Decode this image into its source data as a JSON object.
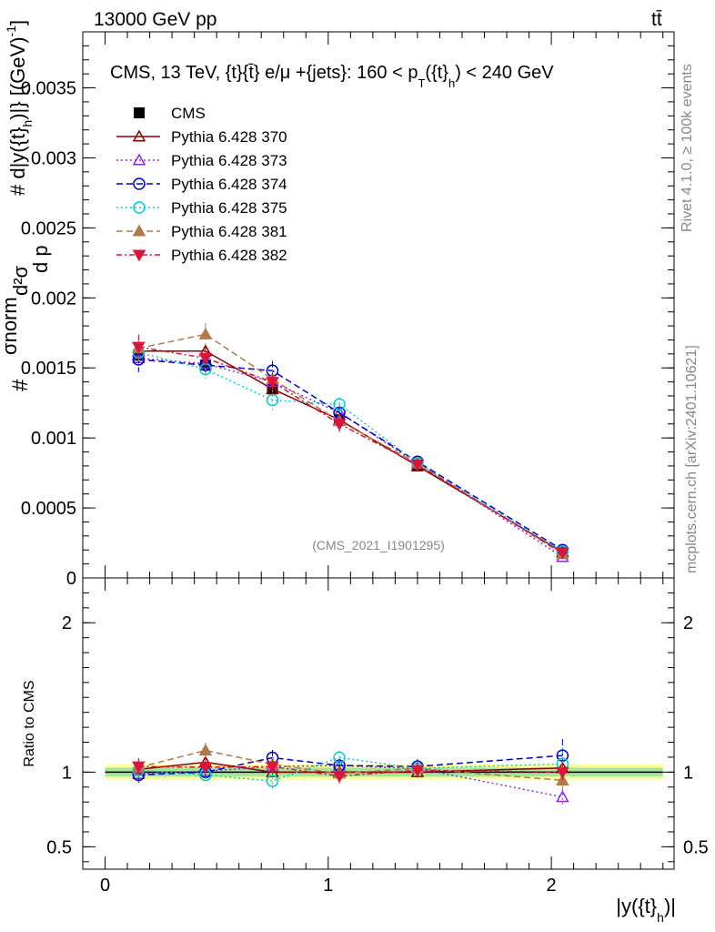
{
  "header": {
    "left": "13000 GeV pp",
    "right": "tt̄"
  },
  "side_text": {
    "rivet": "Rivet 4.1.0, ≥ 100k events",
    "mcplots": "mcplots.cern.ch [arXiv:2401.10621]"
  },
  "chart_data": {
    "type": "line",
    "title": "CMS, 13 TeV, {t}{t̄} e/μ +{jets}: 160 < p_T({t}_h) < 240 GeV",
    "title_main": "CMS, 13 TeV, {t}{t̄} e/μ +{jets}: 160 <  p",
    "title_sub1": "T",
    "title_mid": "({t}",
    "title_sub2": "h",
    "title_end": ") < 240 GeV",
    "watermark": "(CMS_2021_I1901295)",
    "xlabel": "|y({t}_h)|",
    "xlabel_main": "|y({t}",
    "xlabel_sub": "h",
    "xlabel_end": ")|",
    "ylabel": "1/σ_norm d²σ / (d p_T({t}_h) d|y({t}_h)|) [(GeV)^-1]",
    "ylabel_top": "# d|y({t}",
    "ylabel_top_sub": "h",
    "ylabel_top_end": ")|} [(GeV)",
    "ylabel_top_sup": "-1",
    "ylabel_top_close": "]",
    "ylabel_frac": "d²σ",
    "ylabel_den": "d p",
    "ylabel_norm": "σnorm",
    "ratio_ylabel": "Ratio to CMS",
    "xlim": [
      -0.1,
      2.55
    ],
    "ylim": [
      0,
      0.0039
    ],
    "ratio_ylim": [
      0.35,
      2.3
    ],
    "x_ticks": [
      0,
      1,
      2
    ],
    "x_tick_labels": [
      "0",
      "1",
      "2"
    ],
    "y_ticks": [
      0,
      0.0005,
      0.001,
      0.0015,
      0.002,
      0.0025,
      0.003,
      0.0035
    ],
    "y_tick_labels": [
      "0",
      "0.0005",
      "0.001",
      "0.0015",
      "0.002",
      "0.0025",
      "0.003",
      "0.0035"
    ],
    "ratio_ticks": [
      0.5,
      1,
      2
    ],
    "ratio_tick_labels": [
      "0.5",
      "1",
      "2"
    ],
    "x": [
      0.15,
      0.45,
      0.75,
      1.05,
      1.4,
      2.05
    ],
    "x_bins": [
      [
        0,
        0.3
      ],
      [
        0.3,
        0.6
      ],
      [
        0.6,
        0.9
      ],
      [
        0.9,
        1.2
      ],
      [
        1.2,
        1.6
      ],
      [
        1.6,
        2.5
      ]
    ],
    "data": {
      "name": "CMS",
      "values": [
        0.00159,
        0.00152,
        0.00135,
        0.00113,
        0.0008,
        0.00018
      ],
      "errors": [
        5e-05,
        5e-05,
        4e-05,
        4e-05,
        3e-05,
        1e-05
      ]
    },
    "band_rel": 0.05,
    "series": [
      {
        "name": "Pythia 6.428 370",
        "color": "#8b0000",
        "dash": "",
        "marker": "tri-up-open",
        "values": [
          0.00162,
          0.00162,
          0.00135,
          0.00113,
          0.0008,
          0.000185
        ],
        "errors": [
          4e-05,
          4e-05,
          3e-05,
          3e-05,
          2e-05,
          1e-05
        ]
      },
      {
        "name": "Pythia 6.428 373",
        "color": "#8a2be2",
        "dash": "2,3",
        "marker": "tri-up-open",
        "values": [
          0.00157,
          0.00153,
          0.0014,
          0.00118,
          0.00082,
          0.00015
        ],
        "errors": [
          9e-05,
          7e-05,
          6e-05,
          5e-05,
          4e-05,
          1e-05
        ]
      },
      {
        "name": "Pythia 6.428 374",
        "color": "#0000cd",
        "dash": "7,4",
        "marker": "circle-open",
        "values": [
          0.00156,
          0.00152,
          0.00148,
          0.00118,
          0.00083,
          0.0002
        ],
        "errors": [
          9e-05,
          7e-05,
          7e-05,
          5e-05,
          4e-05,
          2e-05
        ]
      },
      {
        "name": "Pythia 6.428 375",
        "color": "#00ced1",
        "dash": "2,3",
        "marker": "circle-open",
        "values": [
          0.00161,
          0.00149,
          0.00127,
          0.00124,
          0.00082,
          0.00019
        ],
        "errors": [
          8e-05,
          7e-05,
          7e-05,
          5e-05,
          4e-05,
          2e-05
        ]
      },
      {
        "name": "Pythia 6.428 381",
        "color": "#b07a4a",
        "dash": "7,4",
        "marker": "tri-up-filled",
        "values": [
          0.00164,
          0.00174,
          0.00142,
          0.00112,
          0.00082,
          0.00017
        ],
        "errors": [
          9e-05,
          8e-05,
          7e-05,
          5e-05,
          4e-05,
          1e-05
        ]
      },
      {
        "name": "Pythia 6.428 382",
        "color": "#dc143c",
        "dash": "6,3,2,3",
        "marker": "tri-down-filled",
        "values": [
          0.00165,
          0.00157,
          0.0014,
          0.0011,
          0.00081,
          0.00018
        ],
        "errors": [
          9e-05,
          8e-05,
          7e-05,
          6e-05,
          4e-05,
          1e-05
        ]
      }
    ]
  }
}
